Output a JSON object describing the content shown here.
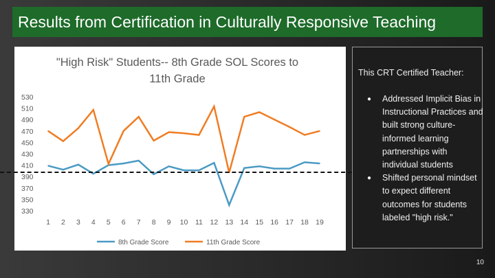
{
  "slide": {
    "title": "Results from Certification in Culturally Responsive Teaching",
    "page_number": "10"
  },
  "side": {
    "heading": "This CRT Certified Teacher:",
    "bullets": [
      "Addressed Implicit Bias in Instructional Practices and built strong culture-informed learning partnerships with individual students",
      "Shifted personal mindset to expect different outcomes for students labeled \"high risk.\""
    ]
  },
  "chart_data": {
    "type": "line",
    "title": "\"High Risk\" Students-- 8th Grade SOL Scores to 11th Grade",
    "title_lines": [
      "\"High Risk\" Students-- 8th Grade SOL Scores to",
      "11th Grade"
    ],
    "xlabel": "",
    "ylabel": "",
    "categories": [
      "1",
      "2",
      "3",
      "4",
      "5",
      "6",
      "7",
      "8",
      "9",
      "10",
      "11",
      "12",
      "13",
      "14",
      "15",
      "16",
      "17",
      "18",
      "19"
    ],
    "y_ticks": [
      330,
      350,
      370,
      390,
      410,
      430,
      450,
      470,
      490,
      510,
      530
    ],
    "ylim": [
      330,
      530
    ],
    "grid": false,
    "legend_position": "bottom",
    "series": [
      {
        "name": "8th Grade Score",
        "color": "#4a9ac4",
        "values": [
          409,
          402,
          411,
          395,
          410,
          413,
          418,
          394,
          408,
          401,
          401,
          414,
          340,
          405,
          408,
          404,
          404,
          415,
          413
        ]
      },
      {
        "name": "11th Grade Score",
        "color": "#f07c22",
        "values": [
          470,
          452,
          475,
          507,
          412,
          470,
          495,
          453,
          468,
          466,
          463,
          513,
          397,
          495,
          503,
          490,
          477,
          463,
          470
        ]
      }
    ]
  }
}
